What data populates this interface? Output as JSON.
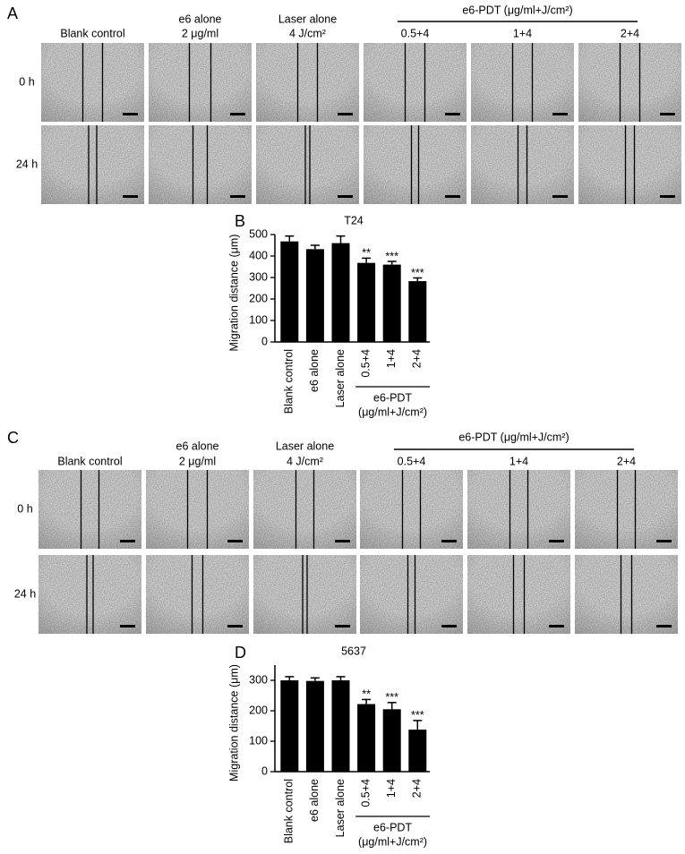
{
  "panel_a": {
    "label": "A",
    "headers": [
      [
        "Blank control"
      ],
      [
        "e6 alone",
        "2 μg/ml"
      ],
      [
        "Laser alone",
        "4 J/cm²"
      ],
      [
        "0.5+4"
      ],
      [
        "1+4"
      ],
      [
        "2+4"
      ]
    ],
    "group_header": "e6-PDT (μg/ml+J/cm²)",
    "rows": [
      "0 h",
      "24 h"
    ]
  },
  "panel_c": {
    "label": "C",
    "headers": [
      [
        "Blank control"
      ],
      [
        "e6 alone",
        "2 μg/ml"
      ],
      [
        "Laser alone",
        "4 J/cm²"
      ],
      [
        "0.5+4"
      ],
      [
        "1+4"
      ],
      [
        "2+4"
      ]
    ],
    "group_header": "e6-PDT (μg/ml+J/cm²)",
    "rows": [
      "0 h",
      "24 h"
    ]
  },
  "chart_data": [
    {
      "type": "bar",
      "panel_label": "B",
      "title": "T24",
      "y_label": "Migration distance (μm)",
      "categories": [
        "Blank control",
        "e6 alone",
        "Laser alone",
        "0.5+4",
        "1+4",
        "2+4"
      ],
      "values": [
        468,
        432,
        460,
        368,
        360,
        283
      ],
      "errors": [
        25,
        18,
        33,
        22,
        15,
        15
      ],
      "significance": [
        null,
        null,
        null,
        "**",
        "***",
        "***"
      ],
      "group_label": [
        "e6-PDT",
        "(μg/ml+J/cm²)"
      ],
      "ylim": [
        0,
        500
      ],
      "yticks": [
        0,
        100,
        200,
        300,
        400,
        500
      ],
      "color": "#000000"
    },
    {
      "type": "bar",
      "panel_label": "D",
      "title": "5637",
      "y_label": "Migration distance (μm)",
      "categories": [
        "Blank control",
        "e6 alone",
        "Laser alone",
        "0.5+4",
        "1+4",
        "2+4"
      ],
      "values": [
        300,
        298,
        300,
        222,
        205,
        138
      ],
      "errors": [
        12,
        10,
        12,
        15,
        22,
        30
      ],
      "significance": [
        null,
        null,
        null,
        "**",
        "***",
        "***"
      ],
      "group_label": [
        "e6-PDT",
        "(μg/ml+J/cm²)"
      ],
      "ylim": [
        0,
        350
      ],
      "yticks": [
        0,
        100,
        200,
        300
      ],
      "color": "#000000"
    }
  ]
}
